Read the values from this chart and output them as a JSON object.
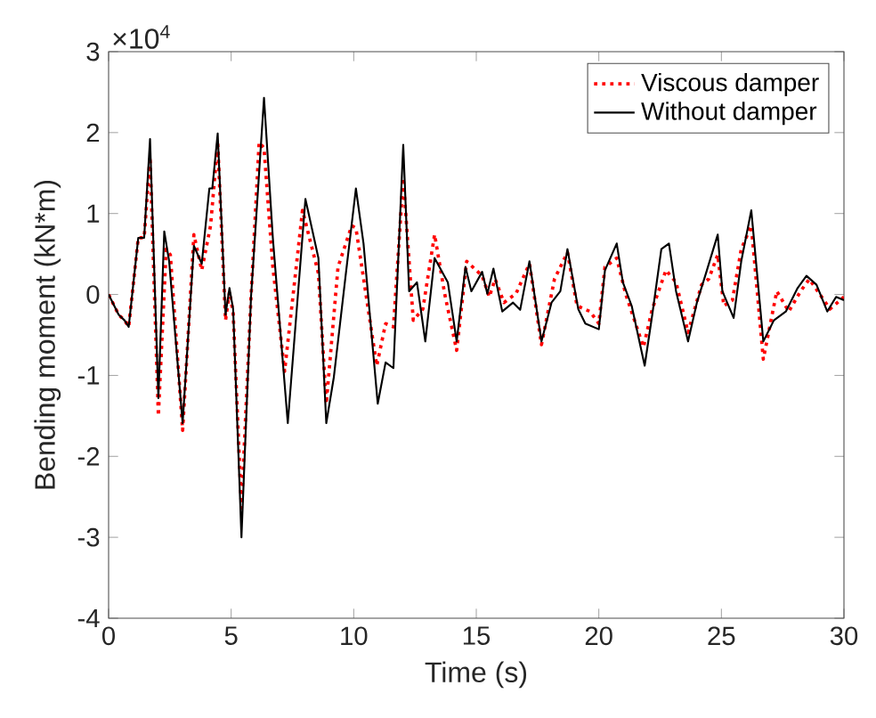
{
  "chart_data": {
    "type": "line",
    "xlabel": "Time (s)",
    "ylabel": "Bending moment (kN*m)",
    "annotations": [
      "×10$^{4}$"
    ],
    "xlim": [
      0,
      30
    ],
    "xticks": [
      0,
      5,
      10,
      15,
      20,
      25,
      30
    ],
    "ylim": [
      -4,
      3
    ],
    "yticks": [
      -4,
      -3,
      -2,
      -1,
      0,
      1,
      2,
      3
    ],
    "legend": "top right",
    "series": [
      {
        "name": "Viscous damper",
        "color": "#ff0000",
        "line_style": "dotted",
        "x": [
          0,
          0.41,
          0.65,
          0.82,
          1.21,
          1.45,
          1.69,
          2.03,
          2.35,
          2.52,
          3.02,
          3.48,
          3.8,
          4.16,
          4.45,
          4.77,
          4.93,
          5.08,
          5.42,
          5.81,
          6.14,
          6.34,
          6.7,
          7.18,
          7.91,
          8.56,
          8.88,
          9.36,
          9.92,
          10.09,
          10.94,
          11.3,
          11.62,
          12.02,
          12.43,
          12.82,
          13.3,
          13.71,
          14.2,
          14.61,
          15.24,
          15.53,
          15.77,
          16.13,
          16.62,
          17.17,
          17.66,
          18.19,
          18.72,
          19.11,
          19.64,
          20.0,
          20.25,
          20.73,
          21.09,
          21.82,
          22.18,
          22.74,
          23.15,
          23.64,
          24.19,
          24.48,
          24.85,
          25.1,
          25.45,
          25.81,
          26.22,
          26.71,
          27.26,
          27.75,
          28.23,
          28.59,
          29.43,
          30.0
        ],
        "values": [
          0,
          -0.25,
          -0.32,
          -0.4,
          0.7,
          0.7,
          1.7,
          -1.5,
          0.56,
          0.49,
          -1.68,
          0.74,
          0.3,
          0.85,
          1.88,
          -0.32,
          0.03,
          -0.22,
          -2.64,
          -0.03,
          1.88,
          1.81,
          0.34,
          -0.95,
          1.04,
          0.26,
          -1.35,
          0.34,
          0.85,
          0.82,
          -0.88,
          -0.36,
          -0.4,
          1.44,
          -0.32,
          -0.18,
          0.74,
          0.01,
          -0.69,
          0.41,
          0.23,
          -0.03,
          0.19,
          -0.1,
          0.01,
          0.38,
          -0.62,
          0.19,
          0.52,
          -0.14,
          -0.21,
          -0.36,
          0.34,
          0.45,
          0.01,
          -0.65,
          -0.18,
          0.3,
          0.15,
          -0.47,
          0.12,
          0.19,
          0.49,
          -0.14,
          -0.07,
          0.56,
          0.85,
          -0.8,
          0.04,
          -0.21,
          0.04,
          0.19,
          -0.18,
          -0.03
        ]
      },
      {
        "name": "Without damper",
        "color": "#000000",
        "line_style": "solid",
        "x": [
          0,
          0.41,
          0.65,
          0.82,
          1.21,
          1.45,
          1.69,
          2.03,
          2.27,
          2.47,
          3.02,
          3.48,
          3.8,
          4.11,
          4.23,
          4.45,
          4.77,
          4.93,
          5.08,
          5.42,
          5.81,
          6.34,
          6.7,
          7.31,
          8.03,
          8.56,
          8.88,
          9.19,
          9.68,
          10.09,
          10.4,
          10.98,
          11.3,
          11.62,
          12.02,
          12.26,
          12.58,
          12.92,
          13.3,
          13.84,
          14.2,
          14.56,
          14.8,
          15.24,
          15.45,
          15.7,
          16.06,
          16.5,
          16.79,
          17.17,
          17.66,
          18.07,
          18.43,
          18.72,
          19.16,
          19.45,
          20.0,
          20.25,
          20.73,
          20.98,
          21.34,
          21.87,
          22.18,
          22.55,
          22.86,
          23.15,
          23.64,
          24.0,
          24.37,
          24.85,
          25.04,
          25.5,
          25.81,
          26.22,
          26.71,
          27.14,
          27.63,
          28.11,
          28.47,
          28.88,
          29.32,
          29.68,
          30.0
        ],
        "values": [
          0,
          -0.25,
          -0.32,
          -0.4,
          0.7,
          0.7,
          1.92,
          -1.28,
          0.78,
          0.41,
          -1.59,
          0.6,
          0.38,
          1.31,
          1.31,
          1.99,
          -0.25,
          0.08,
          -0.18,
          -3.0,
          -0.03,
          2.43,
          0.7,
          -1.59,
          1.18,
          0.45,
          -1.59,
          -1.02,
          0.26,
          1.31,
          0.63,
          -1.35,
          -0.84,
          -0.91,
          1.85,
          0.04,
          0.15,
          -0.58,
          0.45,
          0.15,
          -0.58,
          0.34,
          0.04,
          0.28,
          0.01,
          0.32,
          -0.21,
          -0.1,
          -0.19,
          0.41,
          -0.58,
          -0.1,
          0.04,
          0.56,
          -0.18,
          -0.36,
          -0.43,
          0.3,
          0.63,
          0.15,
          -0.14,
          -0.88,
          -0.25,
          0.56,
          0.63,
          0.04,
          -0.58,
          -0.1,
          0.26,
          0.74,
          0.04,
          -0.29,
          0.41,
          1.04,
          -0.58,
          -0.32,
          -0.21,
          0.08,
          0.23,
          0.12,
          -0.21,
          -0.03,
          -0.07
        ]
      }
    ]
  }
}
